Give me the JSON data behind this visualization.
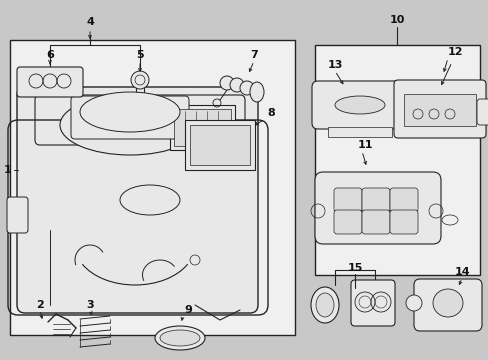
{
  "bg": "#c8c8c8",
  "fg": "#222222",
  "white": "#f0f0f0",
  "light": "#e8e8e8"
}
